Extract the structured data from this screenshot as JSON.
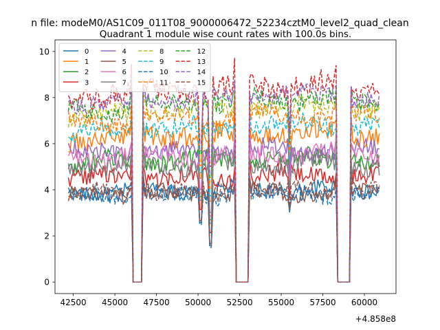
{
  "chart_data": {
    "type": "line",
    "suptitle": "n file: modeM0/AS1C09_011T08_9000006472_52234cztM0_level2_quad_clean",
    "title": "Quadrant 1 module wise count rates with 100.0s bins.",
    "xlabel": "",
    "ylabel": "",
    "offset_text": "+4.858e8",
    "xlim": [
      41400,
      61900
    ],
    "ylim": [
      -0.5,
      10.5
    ],
    "xticks": [
      42500,
      45000,
      47500,
      50000,
      52500,
      55000,
      57500,
      60000
    ],
    "yticks": [
      0,
      2,
      4,
      6,
      8,
      10
    ],
    "x_range": [
      42200,
      60900
    ],
    "gaps": [
      [
        46000,
        46700
      ],
      [
        52200,
        53100
      ],
      [
        58300,
        59200
      ]
    ],
    "dips": [
      [
        50150,
        2.5
      ],
      [
        50750,
        1.5
      ],
      [
        55500,
        3.0
      ]
    ],
    "legend": {
      "location": "upper-left",
      "ncol": 4
    },
    "series": [
      {
        "name": "0",
        "color": "#1f77b4",
        "style": "solid",
        "level": 3.9,
        "amp": 0.35
      },
      {
        "name": "1",
        "color": "#ff7f0e",
        "style": "solid",
        "level": 6.2,
        "amp": 0.45
      },
      {
        "name": "2",
        "color": "#2ca02c",
        "style": "solid",
        "level": 5.2,
        "amp": 0.4
      },
      {
        "name": "3",
        "color": "#d62728",
        "style": "solid",
        "level": 4.5,
        "amp": 0.4
      },
      {
        "name": "4",
        "color": "#9467bd",
        "style": "solid",
        "level": 5.6,
        "amp": 0.4
      },
      {
        "name": "5",
        "color": "#8c564b",
        "style": "solid",
        "level": 3.8,
        "amp": 0.35
      },
      {
        "name": "6",
        "color": "#e377c2",
        "style": "solid",
        "level": 5.4,
        "amp": 0.4
      },
      {
        "name": "7",
        "color": "#7f7f7f",
        "style": "solid",
        "level": 5.0,
        "amp": 0.4
      },
      {
        "name": "8",
        "color": "#bcbd22",
        "style": "dashed",
        "level": 7.2,
        "amp": 0.4
      },
      {
        "name": "9",
        "color": "#17becf",
        "style": "dashed",
        "level": 6.5,
        "amp": 0.4
      },
      {
        "name": "10",
        "color": "#1f77b4",
        "style": "dashed",
        "level": 3.7,
        "amp": 0.35
      },
      {
        "name": "11",
        "color": "#ff7f0e",
        "style": "dashed",
        "level": 6.9,
        "amp": 0.4
      },
      {
        "name": "12",
        "color": "#2ca02c",
        "style": "dashed",
        "level": 7.5,
        "amp": 0.4
      },
      {
        "name": "13",
        "color": "#d62728",
        "style": "dashed",
        "level": 8.1,
        "amp": 0.5
      },
      {
        "name": "14",
        "color": "#9467bd",
        "style": "dashed",
        "level": 7.7,
        "amp": 0.4
      },
      {
        "name": "15",
        "color": "#8c564b",
        "style": "dashed",
        "level": 3.9,
        "amp": 0.35
      }
    ]
  }
}
